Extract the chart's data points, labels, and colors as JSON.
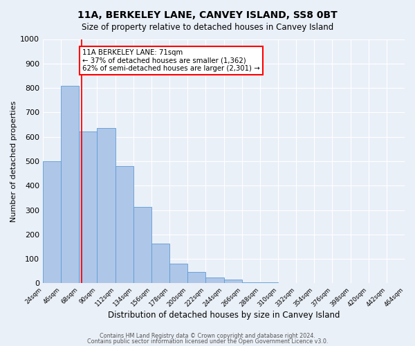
{
  "title": "11A, BERKELEY LANE, CANVEY ISLAND, SS8 0BT",
  "subtitle": "Size of property relative to detached houses in Canvey Island",
  "xlabel": "Distribution of detached houses by size in Canvey Island",
  "ylabel": "Number of detached properties",
  "bin_edges": [
    24,
    46,
    68,
    90,
    112,
    134,
    156,
    178,
    200,
    222,
    244,
    266,
    288,
    310,
    332,
    354,
    376,
    398,
    420,
    442,
    464
  ],
  "bar_heights": [
    500,
    810,
    623,
    635,
    480,
    312,
    162,
    80,
    47,
    25,
    15,
    5,
    3,
    2,
    1,
    0,
    0,
    0,
    0,
    0
  ],
  "bar_color": "#aec6e8",
  "bar_edgecolor": "#5b9bd5",
  "property_line_x": 71,
  "property_line_color": "red",
  "annotation_title": "11A BERKELEY LANE: 71sqm",
  "annotation_line1": "← 37% of detached houses are smaller (1,362)",
  "annotation_line2": "62% of semi-detached houses are larger (2,301) →",
  "annotation_box_color": "white",
  "annotation_box_edgecolor": "red",
  "ylim": [
    0,
    1000
  ],
  "yticks": [
    0,
    100,
    200,
    300,
    400,
    500,
    600,
    700,
    800,
    900,
    1000
  ],
  "background_color": "#eaf0f8",
  "grid_color": "#ffffff",
  "footer1": "Contains HM Land Registry data © Crown copyright and database right 2024.",
  "footer2": "Contains public sector information licensed under the Open Government Licence v3.0."
}
